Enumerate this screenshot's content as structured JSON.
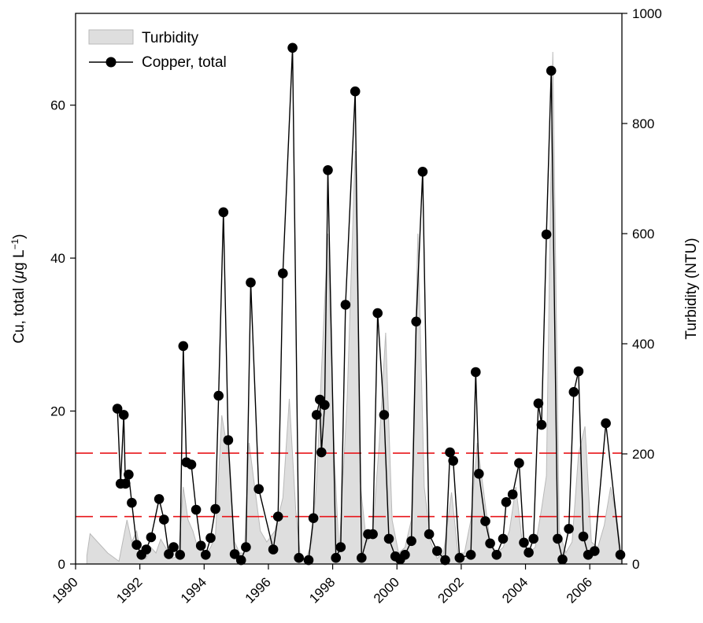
{
  "chart_data": {
    "type": "line",
    "title": "",
    "xlabel": "",
    "ylabel_left_prefix": "Cu, total (",
    "ylabel_left_mu": "μ",
    "ylabel_left_unit": "g L",
    "ylabel_left_exp": "−1",
    "ylabel_left_suffix": ")",
    "ylabel_right": "Turbidity (NTU)",
    "xlim": [
      1990,
      2007
    ],
    "ylim_left": [
      0,
      72
    ],
    "ylim_right": [
      0,
      1000
    ],
    "x_ticks": [
      1990,
      1992,
      1994,
      1996,
      1998,
      2000,
      2002,
      2004,
      2006
    ],
    "x_tick_labels": [
      "1990",
      "1992",
      "1994",
      "1996",
      "1998",
      "2000",
      "2002",
      "2004",
      "2006"
    ],
    "y_left_ticks": [
      0,
      20,
      40,
      60
    ],
    "y_left_tick_labels": [
      "0",
      "20",
      "40",
      "60"
    ],
    "y_right_ticks": [
      0,
      200,
      400,
      600,
      800,
      1000
    ],
    "y_right_tick_labels": [
      "0",
      "200",
      "400",
      "600",
      "800",
      "1000"
    ],
    "legend": {
      "position": "top-left",
      "entries": [
        "Turbidity",
        "Copper, total"
      ]
    },
    "reference_lines": [
      {
        "axis": "left",
        "value": 14.5,
        "color": "#e8161b",
        "style": "dashed"
      },
      {
        "axis": "left",
        "value": 6.2,
        "color": "#e8161b",
        "style": "dashed"
      }
    ],
    "series": [
      {
        "name": "Turbidity",
        "kind": "area",
        "axis": "right",
        "fill": "#dedede",
        "stroke": "#b9b9b9",
        "x": [
          1990.35,
          1990.45,
          1991.0,
          1991.35,
          1991.6,
          1991.75,
          1991.9,
          1992.05,
          1992.2,
          1992.35,
          1992.5,
          1992.65,
          1992.8,
          1993.0,
          1993.2,
          1993.35,
          1993.5,
          1993.65,
          1993.8,
          1994.0,
          1994.2,
          1994.35,
          1994.55,
          1994.75,
          1994.95,
          1995.1,
          1995.25,
          1995.4,
          1995.55,
          1995.75,
          1995.95,
          1996.2,
          1996.45,
          1996.65,
          1996.85,
          1997.0,
          1997.15,
          1997.35,
          1997.5,
          1997.65,
          1997.85,
          1998.05,
          1998.2,
          1998.45,
          1998.7,
          1998.85,
          1999.05,
          1999.25,
          1999.45,
          1999.65,
          1999.85,
          2000.05,
          2000.25,
          2000.45,
          2000.65,
          2000.85,
          2001.05,
          2001.25,
          2001.45,
          2001.7,
          2001.9,
          2002.1,
          2002.3,
          2002.5,
          2002.7,
          2002.9,
          2003.1,
          2003.3,
          2003.5,
          2003.7,
          2003.9,
          2004.1,
          2004.3,
          2004.5,
          2004.65,
          2004.85,
          2005.05,
          2005.25,
          2005.45,
          2005.65,
          2005.85,
          2006.05,
          2006.25,
          2006.45,
          2006.65,
          2006.85,
          2006.98
        ],
        "values": [
          15,
          55,
          20,
          5,
          80,
          40,
          60,
          10,
          10,
          30,
          20,
          45,
          30,
          10,
          15,
          140,
          80,
          60,
          30,
          15,
          30,
          50,
          270,
          200,
          40,
          20,
          20,
          220,
          150,
          60,
          40,
          60,
          120,
          300,
          100,
          10,
          5,
          40,
          150,
          350,
          600,
          200,
          20,
          300,
          750,
          150,
          40,
          60,
          220,
          420,
          80,
          20,
          30,
          80,
          600,
          140,
          40,
          10,
          20,
          130,
          20,
          20,
          80,
          220,
          130,
          40,
          20,
          30,
          60,
          140,
          40,
          20,
          30,
          100,
          160,
          930,
          60,
          20,
          40,
          200,
          250,
          40,
          30,
          70,
          140,
          80,
          15
        ]
      },
      {
        "name": "Copper, total",
        "kind": "line-markers",
        "axis": "left",
        "color": "#000000",
        "x": [
          1991.3,
          1991.4,
          1991.5,
          1991.55,
          1991.65,
          1991.75,
          1991.9,
          1992.05,
          1992.2,
          1992.35,
          1992.6,
          1992.75,
          1992.9,
          1993.05,
          1993.25,
          1993.35,
          1993.45,
          1993.6,
          1993.75,
          1993.9,
          1994.05,
          1994.2,
          1994.35,
          1994.45,
          1994.6,
          1994.75,
          1994.95,
          1995.15,
          1995.3,
          1995.45,
          1995.7,
          1996.15,
          1996.3,
          1996.45,
          1996.75,
          1996.95,
          1997.25,
          1997.4,
          1997.5,
          1997.6,
          1997.65,
          1997.75,
          1997.85,
          1998.1,
          1998.25,
          1998.4,
          1998.7,
          1998.9,
          1999.1,
          1999.25,
          1999.4,
          1999.6,
          1999.75,
          1999.95,
          2000.1,
          2000.25,
          2000.45,
          2000.6,
          2000.8,
          2001.0,
          2001.25,
          2001.5,
          2001.65,
          2001.75,
          2001.95,
          2002.3,
          2002.45,
          2002.55,
          2002.75,
          2002.9,
          2003.1,
          2003.3,
          2003.4,
          2003.6,
          2003.8,
          2003.95,
          2004.1,
          2004.25,
          2004.4,
          2004.5,
          2004.65,
          2004.8,
          2005.0,
          2005.15,
          2005.35,
          2005.5,
          2005.65,
          2005.8,
          2005.95,
          2006.15,
          2006.5,
          2006.95
        ],
        "values": [
          20.3,
          10.5,
          19.5,
          10.5,
          11.7,
          8.0,
          2.5,
          1.2,
          1.9,
          3.5,
          8.5,
          5.8,
          1.3,
          2.2,
          1.2,
          28.5,
          13.3,
          13.0,
          7.1,
          2.4,
          1.2,
          3.4,
          7.2,
          22.0,
          46.0,
          16.2,
          1.3,
          0.5,
          2.2,
          36.8,
          9.8,
          1.9,
          6.2,
          38.0,
          67.5,
          0.8,
          0.5,
          6.0,
          19.5,
          21.5,
          14.6,
          20.8,
          51.5,
          0.8,
          2.2,
          33.9,
          61.8,
          0.8,
          3.9,
          3.9,
          32.8,
          19.5,
          3.3,
          1.0,
          0.6,
          1.2,
          3.0,
          31.7,
          51.3,
          3.9,
          1.7,
          0.5,
          14.6,
          13.5,
          0.8,
          1.2,
          25.1,
          11.8,
          5.6,
          2.7,
          1.2,
          3.3,
          8.1,
          9.1,
          13.2,
          2.8,
          1.5,
          3.3,
          21.0,
          18.2,
          43.1,
          64.5,
          3.3,
          0.6,
          4.6,
          22.5,
          25.2,
          3.6,
          1.2,
          1.7,
          18.4,
          1.2
        ]
      }
    ]
  }
}
